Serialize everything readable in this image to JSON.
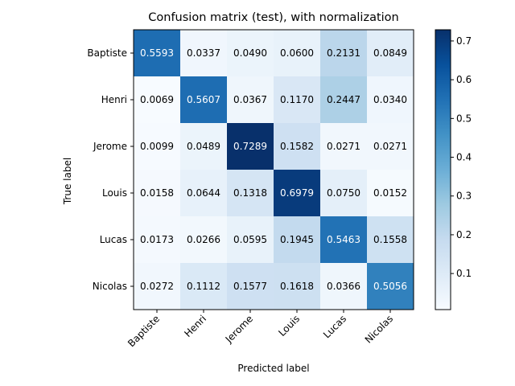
{
  "chart_data": {
    "type": "heatmap",
    "title": "Confusion matrix (test), with normalization",
    "xlabel": "Predicted label",
    "ylabel": "True label",
    "x_categories": [
      "Baptiste",
      "Henri",
      "Jerome",
      "Louis",
      "Lucas",
      "Nicolas"
    ],
    "y_categories": [
      "Baptiste",
      "Henri",
      "Jerome",
      "Louis",
      "Lucas",
      "Nicolas"
    ],
    "values": [
      [
        "0.5593",
        "0.0337",
        "0.0490",
        "0.0600",
        "0.2131",
        "0.0849"
      ],
      [
        "0.0069",
        "0.5607",
        "0.0367",
        "0.1170",
        "0.2447",
        "0.0340"
      ],
      [
        "0.0099",
        "0.0489",
        "0.7289",
        "0.1582",
        "0.0271",
        "0.0271"
      ],
      [
        "0.0158",
        "0.0644",
        "0.1318",
        "0.6979",
        "0.0750",
        "0.0152"
      ],
      [
        "0.0173",
        "0.0266",
        "0.0595",
        "0.1945",
        "0.5463",
        "0.1558"
      ],
      [
        "0.0272",
        "0.1112",
        "0.1577",
        "0.1618",
        "0.0366",
        "0.5056"
      ]
    ],
    "colormap": "Blues",
    "color_range": [
      0.0069,
      0.7289
    ],
    "colorbar_ticks": [
      "0.1",
      "0.2",
      "0.3",
      "0.4",
      "0.5",
      "0.6",
      "0.7"
    ],
    "text_color_threshold": 0.3645,
    "grid": false
  }
}
